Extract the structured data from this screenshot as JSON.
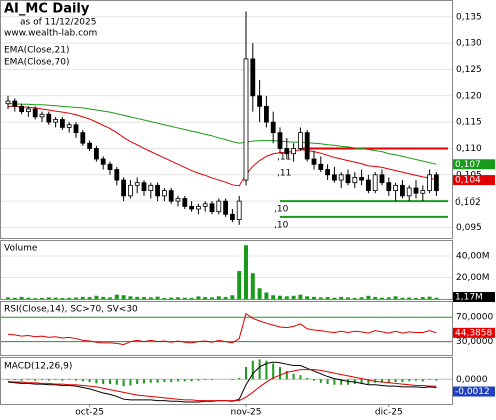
{
  "chart_data": [
    {
      "type": "candlestick",
      "title": "AI_MC Daily",
      "subtitle": "as of 11/12/2025",
      "source": "www.wealth-lab.com",
      "categories": [
        null,
        null,
        null,
        null,
        null,
        null,
        null,
        null,
        null,
        null,
        null,
        null,
        "oct-25",
        null,
        null,
        null,
        null,
        null,
        null,
        null,
        null,
        null,
        null,
        null,
        null,
        null,
        null,
        null,
        null,
        null,
        null,
        null,
        null,
        null,
        null,
        "nov-25",
        null,
        null,
        null,
        null,
        null,
        null,
        null,
        null,
        null,
        null,
        null,
        null,
        null,
        null,
        null,
        null,
        null,
        null,
        null,
        null,
        "dic-25",
        null,
        null,
        null,
        null,
        null,
        null,
        null
      ],
      "ohlc": [
        [
          0.1185,
          0.12,
          0.1175,
          0.119
        ],
        [
          0.119,
          0.1195,
          0.117,
          0.118
        ],
        [
          0.118,
          0.1185,
          0.1165,
          0.117
        ],
        [
          0.117,
          0.118,
          0.116,
          0.1175
        ],
        [
          0.1175,
          0.118,
          0.1155,
          0.116
        ],
        [
          0.116,
          0.117,
          0.115,
          0.1165
        ],
        [
          0.1165,
          0.117,
          0.1145,
          0.115
        ],
        [
          0.115,
          0.116,
          0.114,
          0.1155
        ],
        [
          0.1155,
          0.116,
          0.1135,
          0.114
        ],
        [
          0.114,
          0.115,
          0.113,
          0.1145
        ],
        [
          0.1145,
          0.115,
          0.112,
          0.113
        ],
        [
          0.113,
          0.1135,
          0.1105,
          0.111
        ],
        [
          0.111,
          0.1115,
          0.1095,
          0.11
        ],
        [
          0.11,
          0.1105,
          0.1075,
          0.108
        ],
        [
          0.108,
          0.1085,
          0.106,
          0.107
        ],
        [
          0.107,
          0.1075,
          0.105,
          0.106
        ],
        [
          0.106,
          0.1065,
          0.103,
          0.104
        ],
        [
          0.104,
          0.1045,
          0.1,
          0.101
        ],
        [
          0.101,
          0.104,
          0.1005,
          0.103
        ],
        [
          0.103,
          0.1045,
          0.1015,
          0.1035
        ],
        [
          0.1035,
          0.104,
          0.101,
          0.102
        ],
        [
          0.102,
          0.1035,
          0.1005,
          0.103
        ],
        [
          0.103,
          0.1035,
          0.1,
          0.101
        ],
        [
          0.101,
          0.1025,
          0.1,
          0.102
        ],
        [
          0.102,
          0.1025,
          0.0995,
          0.1
        ],
        [
          0.1,
          0.101,
          0.099,
          0.1005
        ],
        [
          0.1005,
          0.101,
          0.0985,
          0.099
        ],
        [
          0.099,
          0.1,
          0.098,
          0.0985
        ],
        [
          0.0985,
          0.0995,
          0.0975,
          0.099
        ],
        [
          0.099,
          0.1,
          0.098,
          0.0995
        ],
        [
          0.0995,
          0.1,
          0.0975,
          0.098
        ],
        [
          0.098,
          0.1005,
          0.0975,
          0.1
        ],
        [
          0.1,
          0.1005,
          0.097,
          0.0975
        ],
        [
          0.0975,
          0.0985,
          0.096,
          0.0965
        ],
        [
          0.0965,
          0.101,
          0.0955,
          0.1
        ],
        [
          0.104,
          0.136,
          0.103,
          0.127
        ],
        [
          0.127,
          0.13,
          0.117,
          0.12
        ],
        [
          0.12,
          0.123,
          0.115,
          0.118
        ],
        [
          0.118,
          0.12,
          0.114,
          0.115
        ],
        [
          0.115,
          0.117,
          0.111,
          0.113
        ],
        [
          0.113,
          0.114,
          0.109,
          0.11
        ],
        [
          0.11,
          0.112,
          0.108,
          0.109
        ],
        [
          0.109,
          0.111,
          0.1075,
          0.11
        ],
        [
          0.11,
          0.114,
          0.1095,
          0.113
        ],
        [
          0.113,
          0.1135,
          0.1075,
          0.108
        ],
        [
          0.108,
          0.1095,
          0.106,
          0.107
        ],
        [
          0.107,
          0.1085,
          0.1055,
          0.106
        ],
        [
          0.106,
          0.107,
          0.104,
          0.105
        ],
        [
          0.105,
          0.1065,
          0.1035,
          0.104
        ],
        [
          0.104,
          0.1055,
          0.1025,
          0.105
        ],
        [
          0.105,
          0.106,
          0.103,
          0.1035
        ],
        [
          0.1035,
          0.1055,
          0.1025,
          0.1045
        ],
        [
          0.1045,
          0.106,
          0.103,
          0.104
        ],
        [
          0.104,
          0.105,
          0.1015,
          0.102
        ],
        [
          0.102,
          0.1055,
          0.1015,
          0.105
        ],
        [
          0.105,
          0.106,
          0.103,
          0.1035
        ],
        [
          0.1035,
          0.1045,
          0.101,
          0.102
        ],
        [
          0.102,
          0.1035,
          0.1,
          0.103
        ],
        [
          0.103,
          0.104,
          0.1005,
          0.101
        ],
        [
          0.101,
          0.103,
          0.1,
          0.1025
        ],
        [
          0.1025,
          0.104,
          0.1005,
          0.1015
        ],
        [
          0.1015,
          0.103,
          0.1,
          0.102
        ],
        [
          0.102,
          0.106,
          0.1015,
          0.105
        ],
        [
          0.105,
          0.1055,
          0.101,
          0.102
        ]
      ],
      "last_label": "0,102",
      "series": [
        {
          "name": "EMA(Close,21)",
          "color": "#e00000",
          "value_label": "0,104",
          "values": [
            0.118,
            0.118,
            0.1179,
            0.1178,
            0.1177,
            0.1175,
            0.1173,
            0.1171,
            0.1169,
            0.1167,
            0.1164,
            0.116,
            0.1156,
            0.115,
            0.1144,
            0.1138,
            0.113,
            0.1121,
            0.1113,
            0.1107,
            0.11,
            0.1094,
            0.1088,
            0.1082,
            0.1076,
            0.107,
            0.1064,
            0.1058,
            0.1053,
            0.1049,
            0.1044,
            0.104,
            0.1036,
            0.1031,
            0.1029,
            0.105,
            0.1066,
            0.1077,
            0.1085,
            0.109,
            0.1092,
            0.1093,
            0.1094,
            0.1098,
            0.1096,
            0.1094,
            0.1091,
            0.1087,
            0.1083,
            0.108,
            0.1077,
            0.1074,
            0.1071,
            0.1067,
            0.1066,
            0.1064,
            0.1061,
            0.1058,
            0.1055,
            0.1052,
            0.1049,
            0.1046,
            0.1044,
            0.104
          ]
        },
        {
          "name": "EMA(Close,70)",
          "color": "#1a9a1a",
          "value_label": "0,107",
          "values": [
            0.1185,
            0.1185,
            0.1184,
            0.1184,
            0.1183,
            0.1183,
            0.1182,
            0.1181,
            0.118,
            0.1179,
            0.1178,
            0.1177,
            0.1175,
            0.1173,
            0.1171,
            0.1169,
            0.1166,
            0.1163,
            0.116,
            0.1157,
            0.1154,
            0.1151,
            0.1148,
            0.1145,
            0.1142,
            0.1139,
            0.1136,
            0.1133,
            0.113,
            0.1127,
            0.1124,
            0.112,
            0.1117,
            0.1113,
            0.111,
            0.1112,
            0.1114,
            0.1115,
            0.1115,
            0.1115,
            0.1114,
            0.1113,
            0.1112,
            0.1112,
            0.1111,
            0.111,
            0.1109,
            0.1107,
            0.1106,
            0.1104,
            0.1103,
            0.1101,
            0.11,
            0.1098,
            0.1096,
            0.1094,
            0.109,
            0.1088,
            0.1085,
            0.1082,
            0.1079,
            0.1076,
            0.1073,
            0.107
          ]
        }
      ],
      "levels": [
        {
          "value": 0.11,
          "color": "#e00000"
        },
        {
          "value": 0.1,
          "color": "#1a9a1a"
        },
        {
          "value": 0.097,
          "color": "#1a9a1a"
        }
      ],
      "annotations": [
        ",11",
        ",11",
        ",10",
        ",10"
      ],
      "ylim": [
        0.093,
        0.138
      ],
      "yticks": [
        {
          "value": 0.135,
          "label": "0,135"
        },
        {
          "value": 0.13,
          "label": "0,130"
        },
        {
          "value": 0.125,
          "label": "0,125"
        },
        {
          "value": 0.12,
          "label": "0,120"
        },
        {
          "value": 0.115,
          "label": "0,115"
        },
        {
          "value": 0.11,
          "label": "0,110"
        },
        {
          "value": 0.105,
          "label": "0,105"
        },
        {
          "value": 0.1,
          "label": "0,100"
        },
        {
          "value": 0.095,
          "label": "0,095"
        }
      ]
    },
    {
      "type": "bar",
      "title": "Volume",
      "color": "#1a9a1a",
      "values": [
        1.5,
        1.0,
        2.0,
        1.2,
        0.8,
        1.0,
        1.5,
        1.3,
        0.9,
        1.1,
        1.4,
        2.0,
        1.8,
        3.0,
        2.0,
        1.5,
        4.0,
        3.5,
        2.5,
        2.0,
        1.8,
        1.5,
        2.2,
        1.0,
        1.3,
        1.6,
        1.2,
        1.1,
        2.4,
        1.8,
        1.5,
        2.5,
        1.9,
        3.5,
        26.0,
        50.0,
        24.0,
        10.0,
        6.0,
        3.5,
        3.0,
        2.5,
        3.0,
        4.0,
        2.5,
        2.0,
        1.5,
        1.8,
        1.2,
        2.0,
        1.5,
        1.0,
        1.6,
        3.0,
        1.8,
        1.2,
        1.5,
        2.5,
        1.2,
        1.4,
        1.0,
        1.8,
        2.2,
        1.17
      ],
      "last_label": "1,17M",
      "ylim": [
        0,
        54
      ],
      "yticks": [
        {
          "value": 20,
          "label": "20,00M"
        },
        {
          "value": 40,
          "label": "40,00M"
        }
      ]
    },
    {
      "type": "line",
      "title": "RSI(Close,14), SC>70, SV<30",
      "color": "#e00000",
      "threshold_color": "#1a9a1a",
      "values": [
        42,
        41,
        39,
        40,
        38,
        39,
        37,
        38,
        36,
        37,
        35,
        32,
        31,
        29,
        28,
        28,
        27,
        25,
        30,
        32,
        30,
        32,
        30,
        31,
        29,
        31,
        29,
        28,
        30,
        31,
        29,
        32,
        30,
        28,
        35,
        76,
        68,
        64,
        60,
        57,
        54,
        53,
        55,
        59,
        51,
        49,
        48,
        46,
        45,
        47,
        45,
        47,
        46,
        44,
        48,
        46,
        44,
        47,
        44,
        46,
        45,
        45,
        48,
        44.3858
      ],
      "last_label": "44,3858",
      "ylim": [
        8,
        95
      ],
      "yticks": [
        {
          "value": 70,
          "label": "70,0000"
        },
        {
          "value": 30,
          "label": "30,0000"
        }
      ]
    },
    {
      "type": "macd",
      "title": "MACD(12,26,9)",
      "ylim": [
        -0.0036,
        0.0031
      ],
      "yticks": [
        {
          "value": 0,
          "label": "0,0000"
        }
      ],
      "histogram": {
        "color": "#1a9a1a",
        "values": [
          -0.0001,
          -0.0001,
          -0.0002,
          -0.0001,
          -0.0002,
          -0.0001,
          -0.0002,
          -0.0001,
          -0.0002,
          -0.0001,
          -0.0002,
          -0.0003,
          -0.0004,
          -0.0006,
          -0.0007,
          -0.0007,
          -0.0008,
          -0.001,
          -0.0009,
          -0.0007,
          -0.0006,
          -0.0005,
          -0.0005,
          -0.0004,
          -0.0004,
          -0.0003,
          -0.0003,
          -0.0003,
          -0.0002,
          -0.0001,
          -0.0001,
          0,
          0,
          -0.0001,
          0.0002,
          0.0018,
          0.0027,
          0.0029,
          0.0027,
          0.0023,
          0.0018,
          0.0012,
          0.0008,
          0.0006,
          0.0002,
          -0.0002,
          -0.0005,
          -0.0007,
          -0.0008,
          -0.0008,
          -0.0008,
          -0.0007,
          -0.0007,
          -0.0007,
          -0.0005,
          -0.0005,
          -0.0005,
          -0.0004,
          -0.0004,
          -0.0003,
          -0.0002,
          -0.0003,
          -0.0001,
          -0.0002
        ]
      },
      "series": [
        {
          "color": "#000000",
          "value_label": "-0,0012",
          "values": [
            -0.0004,
            -0.0005,
            -0.0006,
            -0.0006,
            -0.0007,
            -0.0007,
            -0.0008,
            -0.0008,
            -0.0009,
            -0.0009,
            -0.001,
            -0.0012,
            -0.0014,
            -0.0017,
            -0.002,
            -0.0022,
            -0.0025,
            -0.0029,
            -0.003,
            -0.003,
            -0.003,
            -0.003,
            -0.0031,
            -0.0031,
            -0.0032,
            -0.0032,
            -0.0033,
            -0.0033,
            -0.0033,
            -0.0032,
            -0.0032,
            -0.0031,
            -0.0031,
            -0.0032,
            -0.0029,
            -0.0008,
            0.0008,
            0.0018,
            0.0023,
            0.0025,
            0.0024,
            0.0022,
            0.002,
            0.002,
            0.0016,
            0.0012,
            0.0008,
            0.0004,
            0.0001,
            -0.0001,
            -0.0003,
            -0.0004,
            -0.0006,
            -0.0008,
            -0.0008,
            -0.0009,
            -0.001,
            -0.001,
            -0.0011,
            -0.0011,
            -0.0011,
            -0.0012,
            -0.0011,
            -0.0012
          ]
        },
        {
          "color": "#e00000",
          "values": [
            -0.0003,
            -0.0004,
            -0.0004,
            -0.0005,
            -0.0005,
            -0.0006,
            -0.0006,
            -0.0007,
            -0.0007,
            -0.0008,
            -0.0008,
            -0.0009,
            -0.001,
            -0.0011,
            -0.0013,
            -0.0015,
            -0.0017,
            -0.0019,
            -0.0021,
            -0.0023,
            -0.0024,
            -0.0025,
            -0.0026,
            -0.0027,
            -0.0028,
            -0.0029,
            -0.003,
            -0.003,
            -0.0031,
            -0.0031,
            -0.0031,
            -0.0031,
            -0.0031,
            -0.0031,
            -0.0031,
            -0.0026,
            -0.0019,
            -0.0011,
            -0.0004,
            0.0002,
            0.0006,
            0.001,
            0.0012,
            0.0014,
            0.0014,
            0.0014,
            0.0013,
            0.0011,
            0.0009,
            0.0007,
            0.0005,
            0.0003,
            0.0001,
            -0.0001,
            -0.0003,
            -0.0004,
            -0.0005,
            -0.0006,
            -0.0007,
            -0.0008,
            -0.0009,
            -0.0009,
            -0.001,
            -0.001
          ]
        }
      ]
    }
  ]
}
